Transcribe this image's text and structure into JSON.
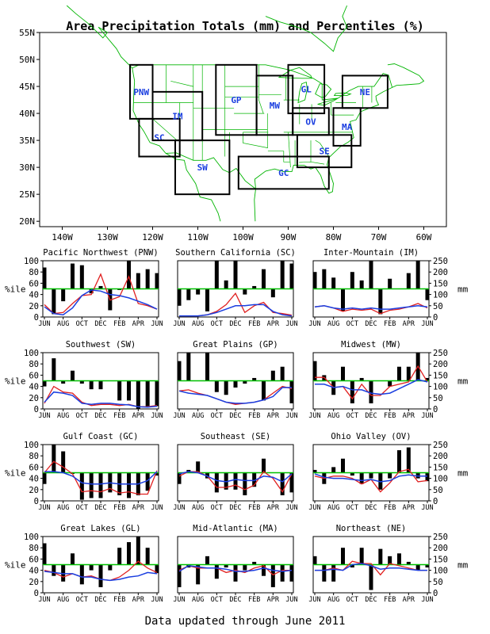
{
  "title": "Area Precipitation Totals (mm) and Percentiles (%)",
  "footer": "Data updated through June 2011",
  "colors": {
    "bar": "#000000",
    "normal_line": "#00c000",
    "red_line": "#e02020",
    "blue_line": "#1a3ee0",
    "map_lines": "#00b400",
    "region_label": "#1a3ee0"
  },
  "map": {
    "lat_labels": [
      "55N",
      "50N",
      "45N",
      "40N",
      "35N",
      "30N",
      "25N",
      "20N"
    ],
    "lon_labels": [
      "140W",
      "130W",
      "120W",
      "110W",
      "100W",
      "90W",
      "80W",
      "70W",
      "60W"
    ],
    "regions": [
      {
        "code": "PNW",
        "lon_min": -125,
        "lon_max": -120,
        "lat_min": 39,
        "lat_max": 49
      },
      {
        "code": "SC",
        "lon_min": -123,
        "lon_max": -114,
        "lat_min": 32,
        "lat_max": 39
      },
      {
        "code": "IM",
        "lon_min": -120,
        "lon_max": -109,
        "lat_min": 35,
        "lat_max": 44
      },
      {
        "code": "SW",
        "lon_min": -115,
        "lon_max": -103,
        "lat_min": 25,
        "lat_max": 35
      },
      {
        "code": "GP",
        "lon_min": -106,
        "lon_max": -97,
        "lat_min": 36,
        "lat_max": 49
      },
      {
        "code": "MW",
        "lon_min": -97,
        "lon_max": -89,
        "lat_min": 36,
        "lat_max": 47
      },
      {
        "code": "GL",
        "lon_min": -90,
        "lon_max": -82,
        "lat_min": 40,
        "lat_max": 49
      },
      {
        "code": "NE",
        "lon_min": -78,
        "lon_max": -68,
        "lat_min": 41,
        "lat_max": 47
      },
      {
        "code": "OV",
        "lon_min": -89,
        "lon_max": -81,
        "lat_min": 36,
        "lat_max": 41
      },
      {
        "code": "MA",
        "lon_min": -80,
        "lon_max": -74,
        "lat_min": 34,
        "lat_max": 41
      },
      {
        "code": "SE",
        "lon_min": -88,
        "lon_max": -76,
        "lat_min": 30,
        "lat_max": 36
      },
      {
        "code": "GC",
        "lon_min": -101,
        "lon_max": -81,
        "lat_min": 26,
        "lat_max": 32
      }
    ]
  },
  "chart_data": {
    "type": "bar",
    "categories": [
      "JUN",
      "JUL",
      "AUG",
      "SEP",
      "OCT",
      "NOV",
      "DEC",
      "JAN",
      "FEB",
      "MAR",
      "APR",
      "MAY",
      "JUN"
    ],
    "x_tick_labels": [
      "JUN",
      "AUG",
      "OCT",
      "DEC",
      "FEB",
      "APR",
      "JUN"
    ],
    "left_axis": {
      "label": "%ile",
      "range": [
        0,
        100
      ],
      "ticks": [
        "0",
        "20",
        "40",
        "60",
        "80",
        "100"
      ]
    },
    "right_axis": {
      "label": "mm",
      "range": [
        0,
        250
      ],
      "ticks": [
        "0",
        "50",
        "100",
        "150",
        "200",
        "250"
      ]
    },
    "normal_percentile": 50,
    "panels": [
      {
        "title": "Pacific Northwest (PNW)",
        "percentiles": [
          88,
          5,
          28,
          95,
          92,
          42,
          55,
          12,
          48,
          100,
          78,
          85,
          78
        ],
        "red_mm": [
          55,
          15,
          20,
          60,
          95,
          100,
          190,
          75,
          90,
          180,
          60,
          50,
          35
        ],
        "blue_mm": [
          45,
          15,
          10,
          40,
          95,
          120,
          115,
          100,
          95,
          85,
          70,
          55,
          35
        ]
      },
      {
        "title": "Southern California (SC)",
        "percentiles": [
          20,
          30,
          40,
          10,
          100,
          65,
          100,
          40,
          55,
          85,
          35,
          100,
          95
        ],
        "red_mm": [
          5,
          5,
          5,
          10,
          25,
          55,
          105,
          20,
          50,
          65,
          20,
          15,
          8
        ],
        "blue_mm": [
          5,
          5,
          5,
          10,
          20,
          35,
          50,
          50,
          55,
          55,
          25,
          10,
          5
        ]
      },
      {
        "title": "Inter-Mountain (IM)",
        "percentiles": [
          80,
          85,
          70,
          10,
          80,
          65,
          100,
          5,
          68,
          50,
          78,
          100,
          30
        ],
        "red_mm": [
          45,
          50,
          40,
          25,
          35,
          30,
          35,
          15,
          30,
          35,
          45,
          60,
          40
        ],
        "blue_mm": [
          45,
          50,
          40,
          35,
          40,
          35,
          40,
          35,
          35,
          40,
          45,
          50,
          45
        ]
      },
      {
        "title": "Southwest (SW)",
        "percentiles": [
          40,
          90,
          45,
          68,
          45,
          35,
          35,
          50,
          15,
          15,
          0,
          5,
          5
        ],
        "red_mm": [
          25,
          100,
          75,
          70,
          30,
          15,
          20,
          20,
          15,
          20,
          10,
          10,
          15
        ],
        "blue_mm": [
          30,
          75,
          70,
          60,
          25,
          20,
          25,
          25,
          20,
          18,
          10,
          8,
          12
        ]
      },
      {
        "title": "Great Plains (GP)",
        "percentiles": [
          85,
          100,
          50,
          100,
          30,
          25,
          38,
          45,
          55,
          15,
          68,
          75,
          10
        ],
        "red_mm": [
          80,
          85,
          70,
          60,
          45,
          30,
          20,
          25,
          30,
          40,
          70,
          100,
          90
        ],
        "blue_mm": [
          80,
          70,
          65,
          60,
          45,
          30,
          25,
          25,
          30,
          40,
          55,
          95,
          95
        ]
      },
      {
        "title": "Midwest (MW)",
        "percentiles": [
          85,
          60,
          25,
          75,
          10,
          55,
          10,
          50,
          40,
          75,
          75,
          100,
          55
        ],
        "red_mm": [
          140,
          140,
          95,
          100,
          45,
          110,
          60,
          60,
          100,
          110,
          120,
          190,
          120
        ],
        "blue_mm": [
          110,
          110,
          95,
          100,
          85,
          85,
          70,
          65,
          70,
          90,
          110,
          130,
          120
        ]
      },
      {
        "title": "Gulf Coast (GC)",
        "percentiles": [
          30,
          100,
          88,
          48,
          2,
          5,
          5,
          15,
          10,
          5,
          10,
          18,
          45
        ],
        "red_mm": [
          125,
          175,
          150,
          120,
          40,
          45,
          40,
          55,
          35,
          40,
          30,
          30,
          135
        ],
        "blue_mm": [
          130,
          130,
          125,
          110,
          80,
          75,
          75,
          80,
          75,
          75,
          75,
          90,
          130
        ]
      },
      {
        "title": "Southeast (SE)",
        "percentiles": [
          30,
          55,
          70,
          40,
          15,
          20,
          20,
          10,
          25,
          75,
          50,
          10,
          15
        ],
        "red_mm": [
          110,
          130,
          130,
          110,
          60,
          60,
          70,
          50,
          70,
          130,
          100,
          40,
          120
        ],
        "blue_mm": [
          120,
          130,
          125,
          110,
          90,
          85,
          95,
          90,
          90,
          110,
          105,
          85,
          120
        ]
      },
      {
        "title": "Ohio Valley (OV)",
        "percentiles": [
          55,
          30,
          60,
          75,
          45,
          30,
          40,
          20,
          40,
          90,
          95,
          40,
          35
        ],
        "red_mm": [
          110,
          100,
          110,
          110,
          100,
          75,
          95,
          40,
          80,
          130,
          140,
          85,
          90
        ],
        "blue_mm": [
          120,
          105,
          100,
          100,
          95,
          90,
          95,
          85,
          90,
          110,
          115,
          110,
          110
        ]
      },
      {
        "title": "Great Lakes (GL)",
        "percentiles": [
          88,
          30,
          20,
          70,
          15,
          40,
          10,
          40,
          80,
          90,
          100,
          80,
          35
        ],
        "red_mm": [
          100,
          90,
          70,
          85,
          70,
          75,
          60,
          55,
          70,
          100,
          140,
          110,
          90
        ],
        "blue_mm": [
          95,
          90,
          85,
          85,
          70,
          70,
          60,
          55,
          60,
          70,
          75,
          90,
          85
        ]
      },
      {
        "title": "Mid-Atlantic (MA)",
        "percentiles": [
          10,
          45,
          15,
          65,
          25,
          45,
          20,
          40,
          55,
          30,
          10,
          20,
          20
        ],
        "red_mm": [
          100,
          120,
          110,
          110,
          110,
          90,
          100,
          90,
          110,
          120,
          80,
          100,
          100
        ],
        "blue_mm": [
          95,
          120,
          115,
          110,
          110,
          105,
          95,
          95,
          100,
          110,
          100,
          95,
          100
        ]
      },
      {
        "title": "Northeast (NE)",
        "percentiles": [
          65,
          20,
          20,
          80,
          45,
          80,
          5,
          78,
          65,
          70,
          55,
          40,
          45
        ],
        "red_mm": [
          100,
          100,
          110,
          100,
          140,
          130,
          130,
          80,
          130,
          120,
          110,
          100,
          100
        ],
        "blue_mm": [
          100,
          100,
          105,
          100,
          125,
          130,
          120,
          105,
          110,
          110,
          105,
          100,
          100
        ]
      }
    ]
  }
}
